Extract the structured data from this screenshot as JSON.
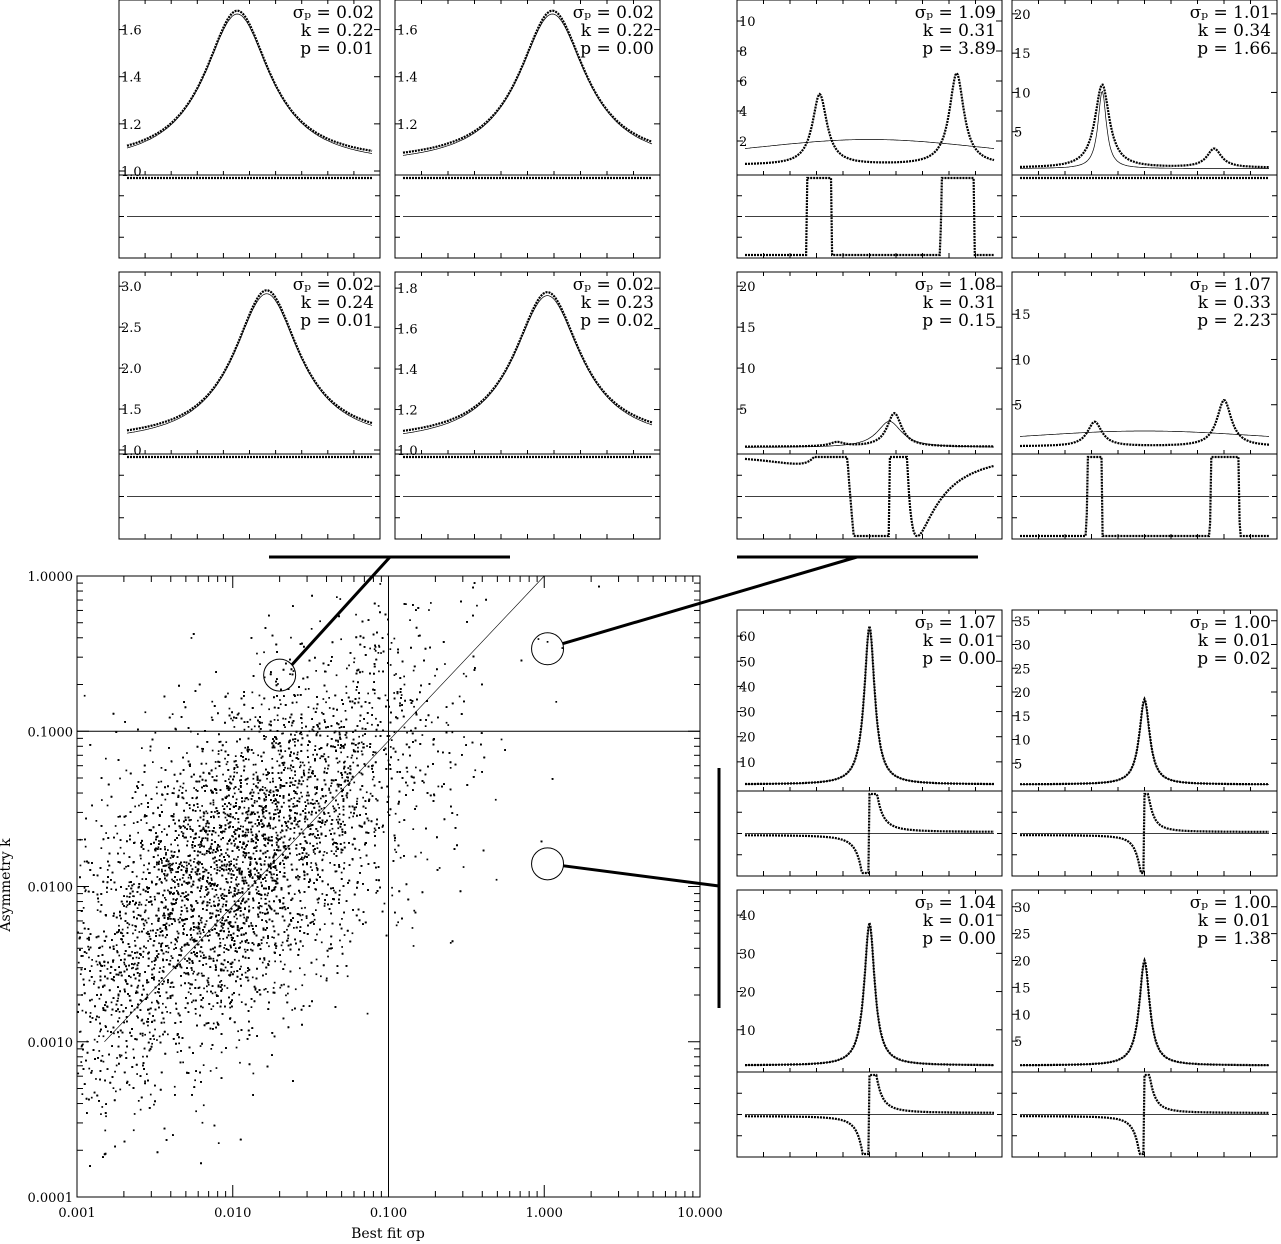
{
  "chart_data": [
    {
      "type": "scatter",
      "xlabel": "Best fit σp",
      "ylabel": "Asymmetry k",
      "x_scale": "log",
      "y_scale": "log",
      "xlim": [
        0.001,
        10.0
      ],
      "ylim": [
        0.0001,
        1.0
      ],
      "x_tick_labels": [
        "0.001",
        "0.010",
        "0.100",
        "1.000",
        "10.000"
      ],
      "y_tick_labels": [
        "1.0000",
        "0.1000",
        "0.0100",
        "0.0010",
        "0.0001"
      ],
      "reference_lines": {
        "vertical_x": 0.1,
        "horizontal_y": 0.1,
        "diagonal": "k = σp"
      },
      "highlight_circles": [
        {
          "x": 0.02,
          "y": 0.23
        },
        {
          "x": 1.05,
          "y": 0.34
        },
        {
          "x": 1.05,
          "y": 0.014
        }
      ],
      "cloud": {
        "n_points": 12000,
        "center_log_sigma": -2.0,
        "center_log_k": -1.9,
        "trend": "k increases with σp"
      }
    },
    {
      "type": "line",
      "group": "top-left",
      "panels": [
        {
          "sigma": "0.02",
          "k": "0.22",
          "p": "0.01",
          "yticks": [
            "1.0",
            "1.2",
            "1.4",
            "1.6"
          ],
          "ylim": [
            1.0,
            1.7
          ],
          "peak_pos": 0.45,
          "peak_h": 1.68
        },
        {
          "sigma": "0.02",
          "k": "0.22",
          "p": "0.00",
          "yticks": [
            "1.2",
            "1.4",
            "1.6"
          ],
          "ylim": [
            1.0,
            1.7
          ],
          "peak_pos": 0.6,
          "peak_h": 1.68
        },
        {
          "sigma": "0.02",
          "k": "0.24",
          "p": "0.01",
          "yticks": [
            "1.0",
            "1.5",
            "2.0",
            "2.5",
            "3.0"
          ],
          "ylim": [
            1.0,
            3.1
          ],
          "peak_pos": 0.57,
          "peak_h": 2.95
        },
        {
          "sigma": "0.02",
          "k": "0.23",
          "p": "0.02",
          "yticks": [
            "1.0",
            "1.2",
            "1.4",
            "1.6",
            "1.8"
          ],
          "ylim": [
            1.0,
            1.85
          ],
          "peak_pos": 0.58,
          "peak_h": 1.78
        }
      ]
    },
    {
      "type": "line",
      "group": "top-right",
      "panels": [
        {
          "sigma": "1.09",
          "k": "0.31",
          "p": "3.89",
          "yticks": [
            "2",
            "4",
            "6",
            "8",
            "10"
          ],
          "ylim": [
            0,
            11
          ],
          "peaks": [
            [
              0.3,
              5.1
            ],
            [
              0.85,
              6.5
            ]
          ]
        },
        {
          "sigma": "1.01",
          "k": "0.34",
          "p": "1.66",
          "yticks": [
            "5",
            "10",
            "15",
            "20"
          ],
          "ylim": [
            0,
            21
          ],
          "peaks": [
            [
              0.33,
              11
            ],
            [
              0.78,
              2.8
            ]
          ]
        },
        {
          "sigma": "1.08",
          "k": "0.31",
          "p": "0.15",
          "yticks": [
            "5",
            "10",
            "15",
            "20"
          ],
          "ylim": [
            0,
            21
          ],
          "peaks": [
            [
              0.37,
              0.9
            ],
            [
              0.6,
              4.5
            ]
          ]
        },
        {
          "sigma": "1.07",
          "k": "0.33",
          "p": "2.23",
          "yticks": [
            "5",
            "10",
            "15"
          ],
          "ylim": [
            0,
            19
          ],
          "peaks": [
            [
              0.3,
              3.1
            ],
            [
              0.82,
              5.5
            ]
          ]
        }
      ]
    },
    {
      "type": "line",
      "group": "bottom-right",
      "panels": [
        {
          "sigma": "1.07",
          "k": "0.01",
          "p": "0.00",
          "yticks": [
            "10",
            "20",
            "30",
            "40",
            "50",
            "60"
          ],
          "ylim": [
            0,
            68
          ],
          "peak_pos": 0.5,
          "peak_h": 64
        },
        {
          "sigma": "1.00",
          "k": "0.01",
          "p": "0.02",
          "yticks": [
            "5",
            "10",
            "15",
            "20",
            "25",
            "30",
            "35"
          ],
          "ylim": [
            0,
            36
          ],
          "peak_pos": 0.5,
          "peak_h": 18.5
        },
        {
          "sigma": "1.04",
          "k": "0.01",
          "p": "0.00",
          "yticks": [
            "10",
            "20",
            "30",
            "40"
          ],
          "ylim": [
            0,
            45
          ],
          "peak_pos": 0.5,
          "peak_h": 38
        },
        {
          "sigma": "1.00",
          "k": "0.01",
          "p": "1.38",
          "yticks": [
            "5",
            "10",
            "15",
            "20",
            "25",
            "30"
          ],
          "ylim": [
            0,
            32
          ],
          "peak_pos": 0.5,
          "peak_h": 20
        }
      ]
    }
  ]
}
